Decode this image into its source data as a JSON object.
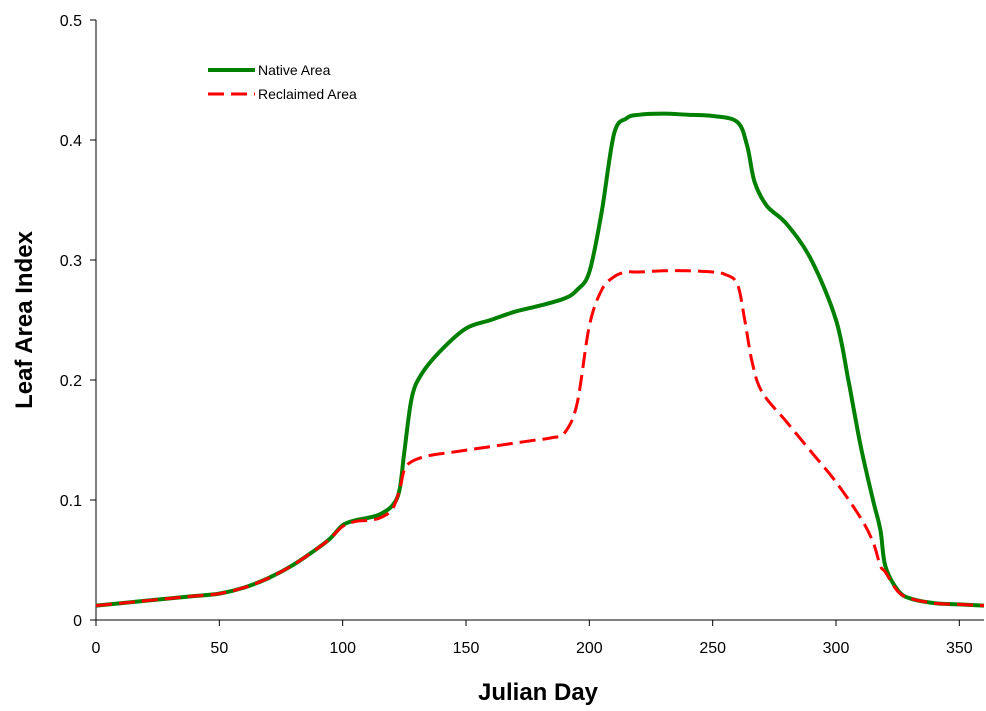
{
  "chart_data": {
    "type": "line",
    "title": "",
    "xlabel": "Julian Day",
    "ylabel": "Leaf Area Index",
    "xlim": [
      0,
      360
    ],
    "ylim": [
      0,
      0.5
    ],
    "x_ticks": [
      0,
      50,
      100,
      150,
      200,
      250,
      300,
      350
    ],
    "y_ticks": [
      0,
      0.1,
      0.2,
      0.3,
      0.4,
      0.5
    ],
    "y_tick_labels": [
      "0",
      "0.1",
      "0.2",
      "0.3",
      "0.4",
      "0.5"
    ],
    "grid": false,
    "legend_position": "top-left",
    "series": [
      {
        "name": "Native Area",
        "color": "#008000",
        "style": "solid",
        "x": [
          0,
          10,
          20,
          30,
          40,
          50,
          60,
          70,
          80,
          90,
          95,
          100,
          105,
          110,
          115,
          120,
          123,
          125,
          128,
          132,
          140,
          150,
          160,
          170,
          180,
          190,
          195,
          200,
          205,
          210,
          215,
          220,
          230,
          240,
          250,
          260,
          264,
          267,
          272,
          280,
          290,
          300,
          305,
          310,
          315,
          318,
          320,
          325,
          330,
          340,
          350,
          360
        ],
        "y": [
          0.012,
          0.014,
          0.016,
          0.018,
          0.02,
          0.022,
          0.027,
          0.035,
          0.046,
          0.06,
          0.068,
          0.079,
          0.083,
          0.085,
          0.088,
          0.095,
          0.108,
          0.14,
          0.185,
          0.205,
          0.225,
          0.243,
          0.25,
          0.257,
          0.262,
          0.268,
          0.275,
          0.29,
          0.34,
          0.405,
          0.418,
          0.421,
          0.422,
          0.421,
          0.42,
          0.415,
          0.395,
          0.365,
          0.345,
          0.33,
          0.3,
          0.25,
          0.2,
          0.145,
          0.1,
          0.075,
          0.045,
          0.025,
          0.018,
          0.014,
          0.013,
          0.012
        ]
      },
      {
        "name": "Reclaimed Area",
        "color": "#ff0000",
        "style": "dashed",
        "x": [
          0,
          10,
          20,
          30,
          40,
          50,
          60,
          70,
          80,
          90,
          95,
          100,
          105,
          110,
          115,
          120,
          123,
          125,
          128,
          135,
          145,
          155,
          165,
          175,
          185,
          190,
          195,
          200,
          205,
          210,
          215,
          220,
          230,
          240,
          250,
          255,
          260,
          263,
          266,
          270,
          280,
          290,
          300,
          310,
          315,
          318,
          320,
          325,
          330,
          340,
          350,
          360
        ],
        "y": [
          0.012,
          0.014,
          0.016,
          0.018,
          0.02,
          0.022,
          0.027,
          0.035,
          0.046,
          0.06,
          0.068,
          0.078,
          0.082,
          0.083,
          0.085,
          0.092,
          0.108,
          0.125,
          0.132,
          0.137,
          0.14,
          0.143,
          0.146,
          0.149,
          0.152,
          0.156,
          0.18,
          0.245,
          0.275,
          0.286,
          0.29,
          0.29,
          0.291,
          0.291,
          0.29,
          0.288,
          0.28,
          0.25,
          0.215,
          0.19,
          0.165,
          0.14,
          0.115,
          0.085,
          0.065,
          0.045,
          0.04,
          0.024,
          0.018,
          0.014,
          0.013,
          0.012
        ]
      }
    ]
  }
}
